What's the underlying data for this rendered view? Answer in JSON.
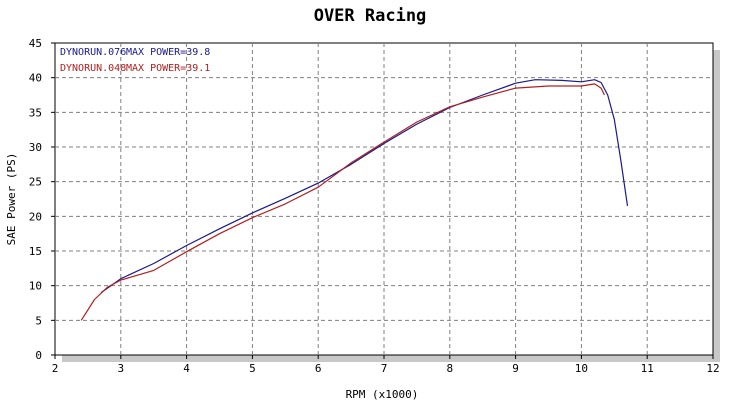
{
  "chart_data": {
    "type": "line",
    "title": "OVER Racing",
    "xlabel": "RPM (x1000)",
    "ylabel": "SAE Power (PS)",
    "xlim": [
      2,
      12
    ],
    "ylim": [
      0,
      45
    ],
    "x_ticks": [
      "2",
      "3",
      "4",
      "5",
      "6",
      "7",
      "8",
      "9",
      "10",
      "11",
      "12"
    ],
    "y_ticks": [
      "0",
      "5",
      "10",
      "15",
      "20",
      "25",
      "30",
      "35",
      "40",
      "45"
    ],
    "grid": true,
    "legend_position": "top-left",
    "series": [
      {
        "name": "DYNORUN.076",
        "annotation": "MAX POWER=39.8",
        "color": "#1a1a8c",
        "points": [
          [
            2.7,
            9.0
          ],
          [
            3.0,
            11.0
          ],
          [
            3.5,
            13.2
          ],
          [
            4.0,
            15.8
          ],
          [
            4.5,
            18.2
          ],
          [
            5.0,
            20.5
          ],
          [
            5.5,
            22.6
          ],
          [
            6.0,
            24.8
          ],
          [
            6.5,
            27.5
          ],
          [
            7.0,
            30.5
          ],
          [
            7.5,
            33.3
          ],
          [
            8.0,
            35.7
          ],
          [
            8.5,
            37.5
          ],
          [
            9.0,
            39.2
          ],
          [
            9.3,
            39.7
          ],
          [
            9.7,
            39.6
          ],
          [
            10.0,
            39.4
          ],
          [
            10.2,
            39.7
          ],
          [
            10.3,
            39.3
          ],
          [
            10.4,
            37.5
          ],
          [
            10.5,
            34.0
          ],
          [
            10.6,
            28.0
          ],
          [
            10.7,
            21.5
          ]
        ]
      },
      {
        "name": "DYNORUN.048",
        "annotation": "MAX POWER=39.1",
        "color": "#b02020",
        "points": [
          [
            2.4,
            5.0
          ],
          [
            2.6,
            8.0
          ],
          [
            2.8,
            9.8
          ],
          [
            3.0,
            10.8
          ],
          [
            3.5,
            12.2
          ],
          [
            4.0,
            14.9
          ],
          [
            4.5,
            17.5
          ],
          [
            5.0,
            19.8
          ],
          [
            5.5,
            21.8
          ],
          [
            6.0,
            24.2
          ],
          [
            6.5,
            27.7
          ],
          [
            7.0,
            30.7
          ],
          [
            7.5,
            33.6
          ],
          [
            8.0,
            35.8
          ],
          [
            8.5,
            37.2
          ],
          [
            9.0,
            38.5
          ],
          [
            9.5,
            38.8
          ],
          [
            10.0,
            38.8
          ],
          [
            10.2,
            39.1
          ],
          [
            10.3,
            38.5
          ],
          [
            10.35,
            37.5
          ]
        ]
      }
    ]
  }
}
